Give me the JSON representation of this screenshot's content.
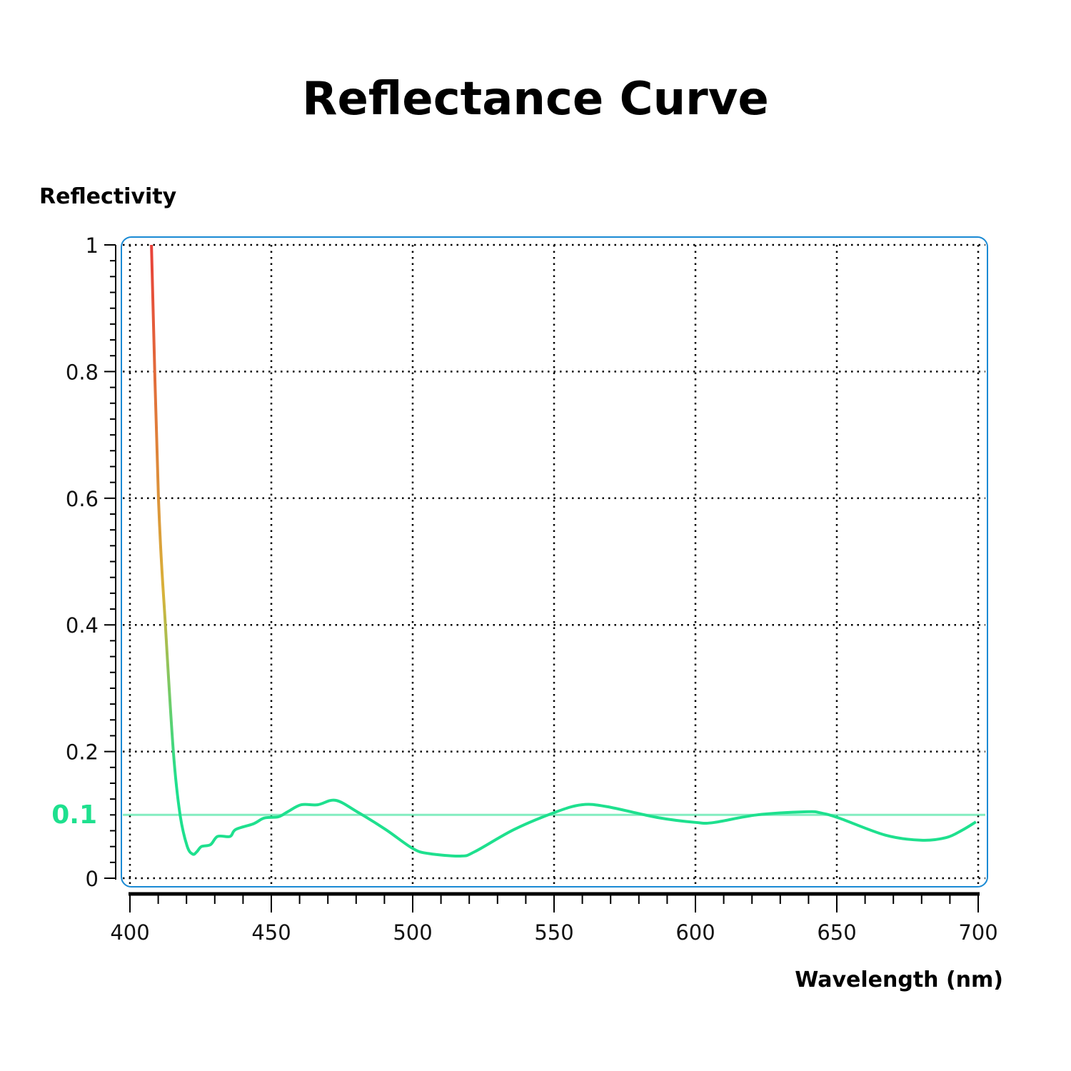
{
  "chart_data": {
    "type": "line",
    "title": "Reflectance Curve",
    "xlabel": "Wavelength (nm)",
    "ylabel": "Reflectivity",
    "xlim": [
      400,
      700
    ],
    "ylim": [
      0,
      1
    ],
    "xticks": [
      "400",
      "450",
      "500",
      "550",
      "600",
      "650",
      "700"
    ],
    "yticks": [
      "0",
      "0.2",
      "0.4",
      "0.6",
      "0.8",
      "1"
    ],
    "grid": true,
    "reference_line": {
      "y": 0.1,
      "label": "0.1",
      "color": "#1ee08e"
    },
    "colors": {
      "frame": "#1a8ad4",
      "curve_high": "#e8413a",
      "curve_mid": "#d8b23a",
      "curve_low": "#1ee08e"
    },
    "series": [
      {
        "x": [
          407.6,
          410.1,
          412.6,
          415.4,
          417.7,
          420.2,
          422.2,
          423.7,
          425.3,
          428.5,
          431,
          435.4,
          437.4,
          443.7,
          447.5,
          452.5,
          455.8,
          460.6,
          466.4,
          472.7,
          480.3,
          490.4,
          500,
          505.6,
          516.9,
          522,
          535.9,
          550.3,
          559.8,
          568.7,
          586.4,
          600.3,
          606.6,
          621.7,
          639.4,
          644.4,
          650.8,
          667.2,
          679.8,
          688.6,
          694.4,
          699.2
        ],
        "y": [
          1.0,
          0.598,
          0.395,
          0.197,
          0.101,
          0.051,
          0.038,
          0.042,
          0.05,
          0.053,
          0.066,
          0.066,
          0.077,
          0.086,
          0.095,
          0.097,
          0.105,
          0.116,
          0.116,
          0.123,
          0.105,
          0.077,
          0.047,
          0.039,
          0.035,
          0.042,
          0.077,
          0.104,
          0.116,
          0.113,
          0.096,
          0.088,
          0.088,
          0.1,
          0.105,
          0.103,
          0.095,
          0.068,
          0.06,
          0.064,
          0.076,
          0.089
        ]
      }
    ]
  }
}
